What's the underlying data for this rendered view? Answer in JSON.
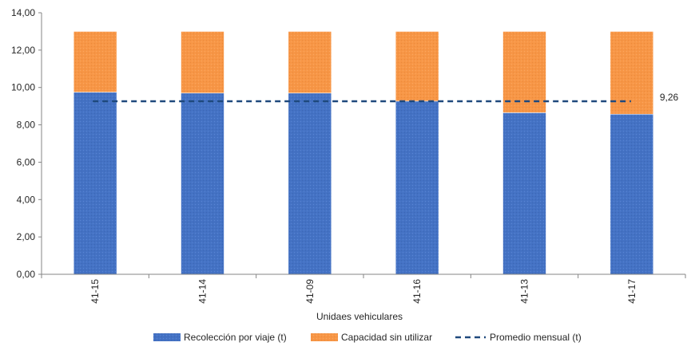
{
  "chart_data": {
    "type": "bar",
    "stacked": true,
    "categories": [
      "41-15",
      "41-14",
      "41-09",
      "41-16",
      "41-13",
      "41-17"
    ],
    "series": [
      {
        "name": "Recolección por viaje (t)",
        "values": [
          9.75,
          9.7,
          9.7,
          9.27,
          8.65,
          8.57
        ],
        "color": "#4472C4"
      },
      {
        "name": "Capacidad sin utilizar",
        "values": [
          3.25,
          3.3,
          3.3,
          3.73,
          4.35,
          4.43
        ],
        "color": "#F79646"
      }
    ],
    "line": {
      "name": "Promedio mensual (t)",
      "value": 9.26,
      "label": "9,26",
      "color": "#1F497D",
      "style": "dashed"
    },
    "xlabel": "Unidaes vehiculares",
    "ylabel": "",
    "ylim": [
      0,
      14
    ],
    "yticks": [
      "0,00",
      "2,00",
      "4,00",
      "6,00",
      "8,00",
      "10,00",
      "12,00",
      "14,00"
    ],
    "ytick_values": [
      0,
      2,
      4,
      6,
      8,
      10,
      12,
      14
    ],
    "grid": false,
    "legend_position": "bottom"
  }
}
